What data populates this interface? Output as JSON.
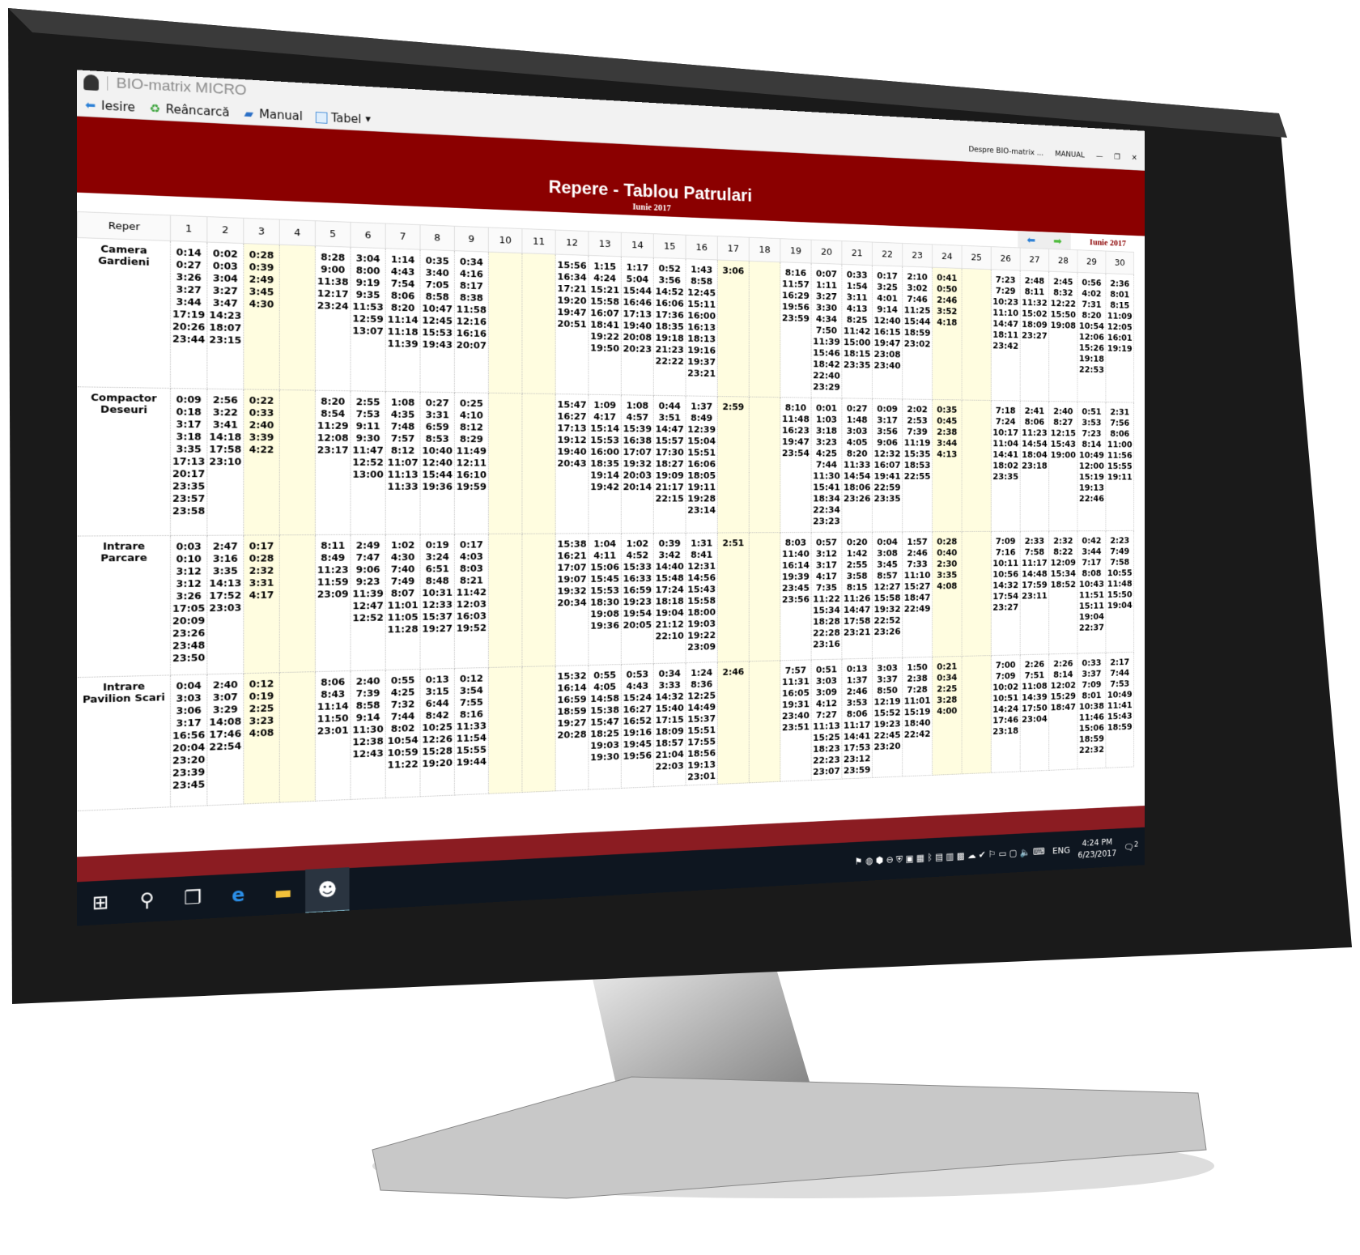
{
  "app": {
    "title": "BIO-matrix MICRO",
    "toolbar": [
      {
        "label": "Iesire",
        "icon": "exit-arrow-icon"
      },
      {
        "label": "Reâncarcă",
        "icon": "reload-icon"
      },
      {
        "label": "Manual",
        "icon": "manual-book-icon"
      },
      {
        "label": "Tabel",
        "icon": "table-icon"
      }
    ],
    "about_label": "Despre BIO-matrix ...",
    "manual_label": "MANUAL"
  },
  "report": {
    "title": "Repere - Tablou Patrulari",
    "subtitle": "Iunie 2017",
    "month_label": "Iunie 2017"
  },
  "table": {
    "header_first": "Reper",
    "days": [
      "1",
      "2",
      "3",
      "4",
      "5",
      "6",
      "7",
      "8",
      "9",
      "10",
      "11",
      "12",
      "13",
      "14",
      "15",
      "16",
      "17",
      "18",
      "19",
      "20",
      "21",
      "22",
      "23",
      "24",
      "25",
      "26",
      "27",
      "28",
      "29",
      "30"
    ],
    "weekend_days": [
      3,
      4,
      10,
      11,
      17,
      18,
      24,
      25
    ],
    "rows": [
      {
        "name": "Camera Gardieni",
        "cells": [
          [
            "0:14",
            "0:27",
            "3:26",
            "3:27",
            "3:44",
            "17:19",
            "20:26",
            "23:44"
          ],
          [
            "0:02",
            "0:03",
            "3:04",
            "3:27",
            "3:47",
            "14:23",
            "18:07",
            "23:15"
          ],
          [
            "0:28",
            "0:39",
            "2:49",
            "3:45",
            "4:30"
          ],
          [],
          [
            "8:28",
            "9:00",
            "11:38",
            "12:17",
            "23:24"
          ],
          [
            "3:04",
            "8:00",
            "9:19",
            "9:35",
            "11:53",
            "12:59",
            "13:07"
          ],
          [
            "1:14",
            "4:43",
            "7:54",
            "8:06",
            "8:20",
            "11:14",
            "11:18",
            "11:39"
          ],
          [
            "0:35",
            "3:40",
            "7:05",
            "8:58",
            "10:47",
            "12:45",
            "15:53",
            "19:43"
          ],
          [
            "0:34",
            "4:16",
            "8:17",
            "8:38",
            "11:58",
            "12:16",
            "16:16",
            "20:07"
          ],
          [],
          [],
          [
            "15:56",
            "16:34",
            "17:21",
            "19:20",
            "19:47",
            "20:51"
          ],
          [
            "1:15",
            "4:24",
            "15:21",
            "15:58",
            "16:07",
            "18:41",
            "19:22",
            "19:50"
          ],
          [
            "1:17",
            "5:04",
            "15:44",
            "16:46",
            "17:13",
            "19:40",
            "20:08",
            "20:23"
          ],
          [
            "0:52",
            "3:56",
            "14:52",
            "16:06",
            "17:36",
            "18:35",
            "19:18",
            "21:23",
            "22:22"
          ],
          [
            "1:43",
            "8:58",
            "12:45",
            "15:11",
            "16:00",
            "16:13",
            "18:13",
            "19:16",
            "19:37",
            "23:21"
          ],
          [
            "3:06"
          ],
          [],
          [
            "8:16",
            "11:57",
            "16:29",
            "19:56",
            "23:59"
          ],
          [
            "0:07",
            "1:11",
            "3:27",
            "3:30",
            "4:34",
            "7:50",
            "11:39",
            "15:46",
            "18:42",
            "22:40",
            "23:29"
          ],
          [
            "0:33",
            "1:54",
            "3:11",
            "4:13",
            "8:25",
            "11:42",
            "15:00",
            "18:15",
            "23:35"
          ],
          [
            "0:17",
            "3:25",
            "4:01",
            "9:14",
            "12:40",
            "16:15",
            "19:47",
            "23:08",
            "23:40"
          ],
          [
            "2:10",
            "3:02",
            "7:46",
            "11:25",
            "15:44",
            "18:59",
            "23:02"
          ],
          [
            "0:41",
            "0:50",
            "2:46",
            "3:52",
            "4:18"
          ],
          [],
          [
            "7:23",
            "7:29",
            "10:23",
            "11:10",
            "14:47",
            "18:11",
            "23:42"
          ],
          [
            "2:48",
            "8:11",
            "11:32",
            "15:02",
            "18:09",
            "23:27"
          ],
          [
            "2:45",
            "8:32",
            "12:22",
            "15:50",
            "19:08"
          ],
          [
            "0:56",
            "4:02",
            "7:31",
            "8:20",
            "10:54",
            "12:06",
            "15:26",
            "19:18",
            "22:53"
          ],
          [
            "2:36",
            "8:01",
            "8:15",
            "11:09",
            "12:05",
            "16:01",
            "19:19"
          ]
        ]
      },
      {
        "name": "Compactor Deseuri",
        "cells": [
          [
            "0:09",
            "0:18",
            "3:17",
            "3:18",
            "3:35",
            "17:13",
            "20:17",
            "23:35",
            "23:57",
            "23:58"
          ],
          [
            "2:56",
            "3:22",
            "3:41",
            "14:18",
            "17:58",
            "23:10"
          ],
          [
            "0:22",
            "0:33",
            "2:40",
            "3:39",
            "4:22"
          ],
          [],
          [
            "8:20",
            "8:54",
            "11:29",
            "12:08",
            "23:17"
          ],
          [
            "2:55",
            "7:53",
            "9:11",
            "9:30",
            "11:47",
            "12:52",
            "13:00"
          ],
          [
            "1:08",
            "4:35",
            "7:48",
            "7:57",
            "8:12",
            "11:07",
            "11:13",
            "11:33"
          ],
          [
            "0:27",
            "3:31",
            "6:59",
            "8:53",
            "10:40",
            "12:40",
            "15:44",
            "19:36"
          ],
          [
            "0:25",
            "4:10",
            "8:12",
            "8:29",
            "11:49",
            "12:11",
            "16:10",
            "19:59"
          ],
          [],
          [],
          [
            "15:47",
            "16:27",
            "17:13",
            "19:12",
            "19:40",
            "20:43"
          ],
          [
            "1:09",
            "4:17",
            "15:14",
            "15:53",
            "16:00",
            "18:35",
            "19:14",
            "19:42"
          ],
          [
            "1:08",
            "4:57",
            "15:39",
            "16:38",
            "17:07",
            "19:32",
            "20:03",
            "20:14"
          ],
          [
            "0:44",
            "3:51",
            "14:47",
            "15:57",
            "17:30",
            "18:27",
            "19:09",
            "21:17",
            "22:15"
          ],
          [
            "1:37",
            "8:49",
            "12:39",
            "15:04",
            "15:51",
            "16:06",
            "18:05",
            "19:11",
            "19:28",
            "23:14"
          ],
          [
            "2:59"
          ],
          [],
          [
            "8:10",
            "11:48",
            "16:23",
            "19:47",
            "23:54"
          ],
          [
            "0:01",
            "1:03",
            "3:18",
            "3:23",
            "4:25",
            "7:44",
            "11:30",
            "15:41",
            "18:34",
            "22:34",
            "23:23"
          ],
          [
            "0:27",
            "1:48",
            "3:03",
            "4:05",
            "8:20",
            "11:33",
            "14:54",
            "18:06",
            "23:26"
          ],
          [
            "0:09",
            "3:17",
            "3:56",
            "9:06",
            "12:32",
            "16:07",
            "19:41",
            "22:59",
            "23:35"
          ],
          [
            "2:02",
            "2:53",
            "7:39",
            "11:19",
            "15:35",
            "18:53",
            "22:55"
          ],
          [
            "0:35",
            "0:45",
            "2:38",
            "3:44",
            "4:13"
          ],
          [],
          [
            "7:18",
            "7:24",
            "10:17",
            "11:04",
            "14:41",
            "18:02",
            "23:35"
          ],
          [
            "2:41",
            "8:06",
            "11:23",
            "14:54",
            "18:04",
            "23:18"
          ],
          [
            "2:40",
            "8:27",
            "12:15",
            "15:43",
            "19:00"
          ],
          [
            "0:51",
            "3:53",
            "7:23",
            "8:14",
            "10:49",
            "12:00",
            "15:19",
            "19:13",
            "22:46"
          ],
          [
            "2:31",
            "7:56",
            "8:06",
            "11:00",
            "11:56",
            "15:55",
            "19:11"
          ]
        ]
      },
      {
        "name": "Intrare Parcare",
        "cells": [
          [
            "0:03",
            "0:10",
            "3:12",
            "3:12",
            "3:26",
            "17:05",
            "20:09",
            "23:26",
            "23:48",
            "23:50"
          ],
          [
            "2:47",
            "3:16",
            "3:35",
            "14:13",
            "17:52",
            "23:03"
          ],
          [
            "0:17",
            "0:28",
            "2:32",
            "3:31",
            "4:17"
          ],
          [],
          [
            "8:11",
            "8:49",
            "11:23",
            "11:59",
            "23:09"
          ],
          [
            "2:49",
            "7:47",
            "9:06",
            "9:23",
            "11:39",
            "12:47",
            "12:52"
          ],
          [
            "1:02",
            "4:30",
            "7:40",
            "7:49",
            "8:07",
            "11:01",
            "11:05",
            "11:28"
          ],
          [
            "0:19",
            "3:24",
            "6:51",
            "8:48",
            "10:31",
            "12:33",
            "15:37",
            "19:27"
          ],
          [
            "0:17",
            "4:03",
            "8:03",
            "8:21",
            "11:42",
            "12:03",
            "16:03",
            "19:52"
          ],
          [],
          [],
          [
            "15:38",
            "16:21",
            "17:07",
            "19:07",
            "19:32",
            "20:34"
          ],
          [
            "1:04",
            "4:11",
            "15:06",
            "15:45",
            "15:53",
            "18:30",
            "19:08",
            "19:36"
          ],
          [
            "1:02",
            "4:52",
            "15:33",
            "16:33",
            "16:59",
            "19:23",
            "19:54",
            "20:05"
          ],
          [
            "0:39",
            "3:42",
            "14:40",
            "15:48",
            "17:24",
            "18:18",
            "19:04",
            "21:12",
            "22:10"
          ],
          [
            "1:31",
            "8:41",
            "12:31",
            "14:56",
            "15:43",
            "15:58",
            "18:00",
            "19:03",
            "19:22",
            "23:09"
          ],
          [
            "2:51"
          ],
          [],
          [
            "8:03",
            "11:40",
            "16:14",
            "19:39",
            "23:45",
            "23:56"
          ],
          [
            "0:57",
            "3:12",
            "3:17",
            "4:17",
            "7:35",
            "11:22",
            "15:34",
            "18:28",
            "22:28",
            "23:16"
          ],
          [
            "0:20",
            "1:42",
            "2:55",
            "3:58",
            "8:15",
            "11:26",
            "14:47",
            "17:58",
            "23:21"
          ],
          [
            "0:04",
            "3:08",
            "3:45",
            "8:57",
            "12:27",
            "15:58",
            "19:32",
            "22:52",
            "23:26"
          ],
          [
            "1:57",
            "2:46",
            "7:33",
            "11:10",
            "15:27",
            "18:47",
            "22:49"
          ],
          [
            "0:28",
            "0:40",
            "2:30",
            "3:35",
            "4:08"
          ],
          [],
          [
            "7:09",
            "7:16",
            "10:11",
            "10:56",
            "14:32",
            "17:54",
            "23:27"
          ],
          [
            "2:33",
            "7:58",
            "11:17",
            "14:48",
            "17:59",
            "23:11"
          ],
          [
            "2:32",
            "8:22",
            "12:09",
            "15:34",
            "18:52"
          ],
          [
            "0:42",
            "3:44",
            "7:17",
            "8:08",
            "10:43",
            "11:51",
            "15:11",
            "19:04",
            "22:37"
          ],
          [
            "2:23",
            "7:49",
            "7:58",
            "10:55",
            "11:48",
            "15:50",
            "19:04"
          ]
        ]
      },
      {
        "name": "Intrare Pavilion Scari",
        "cells": [
          [
            "0:04",
            "3:03",
            "3:06",
            "3:17",
            "16:56",
            "20:04",
            "23:20",
            "23:39",
            "23:45"
          ],
          [
            "2:40",
            "3:07",
            "3:29",
            "14:08",
            "17:46",
            "22:54"
          ],
          [
            "0:12",
            "0:19",
            "2:25",
            "3:23",
            "4:08"
          ],
          [],
          [
            "8:06",
            "8:43",
            "11:14",
            "11:50",
            "23:01"
          ],
          [
            "2:40",
            "7:39",
            "8:58",
            "9:14",
            "11:30",
            "12:38",
            "12:43"
          ],
          [
            "0:55",
            "4:25",
            "7:32",
            "7:44",
            "8:02",
            "10:54",
            "10:59",
            "11:22"
          ],
          [
            "0:13",
            "3:15",
            "6:44",
            "8:42",
            "10:25",
            "12:26",
            "15:28",
            "19:20"
          ],
          [
            "0:12",
            "3:54",
            "7:55",
            "8:16",
            "11:33",
            "11:54",
            "15:55",
            "19:44"
          ],
          [],
          [],
          [
            "15:32",
            "16:14",
            "16:59",
            "18:59",
            "19:27",
            "20:28"
          ],
          [
            "0:55",
            "4:05",
            "14:58",
            "15:38",
            "15:47",
            "18:25",
            "19:03",
            "19:30"
          ],
          [
            "0:53",
            "4:43",
            "15:24",
            "16:27",
            "16:52",
            "19:16",
            "19:45",
            "19:56"
          ],
          [
            "0:34",
            "3:33",
            "14:32",
            "15:40",
            "17:15",
            "18:09",
            "18:57",
            "21:04",
            "22:03"
          ],
          [
            "1:24",
            "8:36",
            "12:25",
            "14:49",
            "15:37",
            "15:51",
            "17:55",
            "18:56",
            "19:13",
            "23:01"
          ],
          [
            "2:46"
          ],
          [],
          [
            "7:57",
            "11:31",
            "16:05",
            "19:31",
            "23:40",
            "23:51"
          ],
          [
            "0:51",
            "3:03",
            "3:09",
            "4:12",
            "7:27",
            "11:13",
            "15:25",
            "18:23",
            "22:23",
            "23:07"
          ],
          [
            "0:13",
            "1:37",
            "2:46",
            "3:53",
            "8:06",
            "11:17",
            "14:41",
            "17:53",
            "23:12",
            "23:59"
          ],
          [
            "3:03",
            "3:37",
            "8:50",
            "12:19",
            "15:52",
            "19:23",
            "22:45",
            "23:20"
          ],
          [
            "1:50",
            "2:38",
            "7:28",
            "11:01",
            "15:19",
            "18:40",
            "22:42"
          ],
          [
            "0:21",
            "0:34",
            "2:25",
            "3:28",
            "4:00"
          ],
          [],
          [
            "7:00",
            "7:09",
            "10:02",
            "10:51",
            "14:24",
            "17:46",
            "23:18"
          ],
          [
            "2:26",
            "7:51",
            "11:08",
            "14:39",
            "17:50",
            "23:04"
          ],
          [
            "2:26",
            "8:14",
            "12:02",
            "15:29",
            "18:47"
          ],
          [
            "0:33",
            "3:37",
            "7:09",
            "8:01",
            "10:38",
            "11:46",
            "15:06",
            "18:59",
            "22:32"
          ],
          [
            "2:17",
            "7:44",
            "7:53",
            "10:49",
            "11:41",
            "15:43",
            "18:59"
          ]
        ]
      }
    ]
  },
  "taskbar": {
    "language": "ENG",
    "time": "4:24 PM",
    "date": "6/23/2017",
    "notification_count": "2"
  },
  "colors": {
    "brand_red": "#8b0000",
    "weekend": "#fffde0",
    "taskbar": "#0e1620"
  }
}
